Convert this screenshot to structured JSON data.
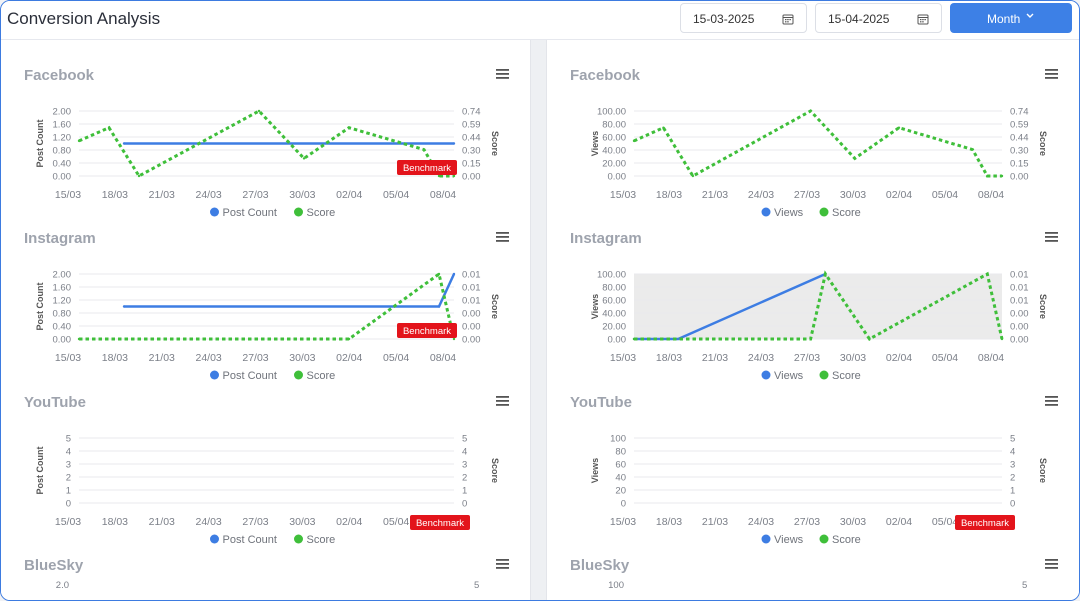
{
  "header": {
    "title": "Conversion Analysis",
    "start_date": "15-03-2025",
    "end_date": "15-04-2025",
    "period_label": "Month"
  },
  "colors": {
    "post_count": "#3d7de3",
    "score": "#3fbf3a",
    "benchmark": "#e3141b",
    "accent": "#3d80e6"
  },
  "columns": [
    {
      "left_metric": "Post Count",
      "platforms": [
        {
          "name": "Facebook",
          "left_ticks": [
            "2.00",
            "1.60",
            "1.20",
            "0.80",
            "0.40",
            "0.00"
          ],
          "right_ticks": [
            "0.74",
            "0.59",
            "0.44",
            "0.30",
            "0.15",
            "0.00"
          ],
          "x_ticks": [
            "15/03",
            "18/03",
            "21/03",
            "24/03",
            "27/03",
            "30/03",
            "02/04",
            "05/04",
            "08/04"
          ],
          "left_label": "Post Count",
          "right_label": "Score",
          "benchmark": "Benchmark",
          "legend": [
            "Post Count",
            "Score"
          ]
        },
        {
          "name": "Instagram",
          "left_ticks": [
            "2.00",
            "1.60",
            "1.20",
            "0.80",
            "0.40",
            "0.00"
          ],
          "right_ticks": [
            "0.01",
            "0.01",
            "0.01",
            "0.00",
            "0.00",
            "0.00"
          ],
          "x_ticks": [
            "15/03",
            "18/03",
            "21/03",
            "24/03",
            "27/03",
            "30/03",
            "02/04",
            "05/04",
            "08/04"
          ],
          "left_label": "Post Count",
          "right_label": "Score",
          "benchmark": "Benchmark",
          "legend": [
            "Post Count",
            "Score"
          ]
        },
        {
          "name": "YouTube",
          "left_ticks": [
            "5",
            "4",
            "3",
            "2",
            "1",
            "0"
          ],
          "right_ticks": [
            "5",
            "4",
            "3",
            "2",
            "1",
            "0"
          ],
          "x_ticks": [
            "15/03",
            "18/03",
            "21/03",
            "24/03",
            "27/03",
            "30/03",
            "02/04",
            "05/04",
            "08/04"
          ],
          "left_label": "Post Count",
          "right_label": "Score",
          "benchmark": "Benchmark",
          "legend": [
            "Post Count",
            "Score"
          ]
        },
        {
          "name": "BlueSky",
          "left_ticks": [
            "2.0"
          ],
          "right_ticks": [
            "5"
          ]
        }
      ]
    },
    {
      "left_metric": "Views",
      "platforms": [
        {
          "name": "Facebook",
          "left_ticks": [
            "100.00",
            "80.00",
            "60.00",
            "40.00",
            "20.00",
            "0.00"
          ],
          "right_ticks": [
            "0.74",
            "0.59",
            "0.44",
            "0.30",
            "0.15",
            "0.00"
          ],
          "x_ticks": [
            "15/03",
            "18/03",
            "21/03",
            "24/03",
            "27/03",
            "30/03",
            "02/04",
            "05/04",
            "08/04"
          ],
          "left_label": "Views",
          "right_label": "Score",
          "legend": [
            "Views",
            "Score"
          ]
        },
        {
          "name": "Instagram",
          "left_ticks": [
            "100.00",
            "80.00",
            "60.00",
            "40.00",
            "20.00",
            "0.00"
          ],
          "right_ticks": [
            "0.01",
            "0.01",
            "0.01",
            "0.00",
            "0.00",
            "0.00"
          ],
          "x_ticks": [
            "15/03",
            "18/03",
            "21/03",
            "24/03",
            "27/03",
            "30/03",
            "02/04",
            "05/04",
            "08/04"
          ],
          "left_label": "Views",
          "right_label": "Score",
          "legend": [
            "Views",
            "Score"
          ]
        },
        {
          "name": "YouTube",
          "left_ticks": [
            "100",
            "80",
            "60",
            "40",
            "20",
            "0"
          ],
          "right_ticks": [
            "5",
            "4",
            "3",
            "2",
            "1",
            "0"
          ],
          "x_ticks": [
            "15/03",
            "18/03",
            "21/03",
            "24/03",
            "27/03",
            "30/03",
            "02/04",
            "05/04",
            "08/04"
          ],
          "left_label": "Views",
          "right_label": "Score",
          "benchmark": "Benchmark",
          "legend": [
            "Views",
            "Score"
          ]
        },
        {
          "name": "BlueSky",
          "left_ticks": [
            "100"
          ],
          "right_ticks": [
            "5"
          ]
        }
      ]
    }
  ],
  "chart_data": [
    {
      "type": "line",
      "title": "Facebook",
      "series": [
        {
          "name": "Post Count",
          "x": [
            "18/03",
            "09/04"
          ],
          "values": [
            1,
            1
          ]
        },
        {
          "name": "Score",
          "x": [
            "15/03",
            "17/03",
            "19/03",
            "27/03",
            "30/03",
            "02/04",
            "07/04",
            "08/04",
            "09/04"
          ],
          "values": [
            0.4,
            0.55,
            0,
            0.74,
            0.2,
            0.55,
            0.3,
            0,
            0
          ]
        }
      ],
      "left_ylim": [
        0,
        2
      ],
      "right_ylim": [
        0,
        0.74
      ],
      "annotations": [
        "Benchmark"
      ]
    },
    {
      "type": "line",
      "title": "Instagram",
      "series": [
        {
          "name": "Post Count",
          "x": [
            "18/03",
            "08/04",
            "09/04"
          ],
          "values": [
            1,
            1,
            2
          ]
        },
        {
          "name": "Score",
          "x": [
            "15/03",
            "02/04",
            "08/04",
            "09/04"
          ],
          "values": [
            0,
            0,
            0.01,
            0
          ]
        }
      ],
      "left_ylim": [
        0,
        2
      ],
      "right_ylim": [
        0,
        0.01
      ],
      "annotations": [
        "Benchmark"
      ]
    },
    {
      "type": "line",
      "title": "YouTube",
      "series": [
        {
          "name": "Post Count",
          "values": []
        },
        {
          "name": "Score",
          "values": []
        }
      ],
      "left_ylim": [
        0,
        5
      ],
      "right_ylim": [
        0,
        5
      ],
      "annotations": [
        "Benchmark"
      ]
    },
    {
      "type": "line",
      "title": "Facebook",
      "series": [
        {
          "name": "Views",
          "values": []
        },
        {
          "name": "Score",
          "x": [
            "15/03",
            "17/03",
            "19/03",
            "27/03",
            "30/03",
            "02/04",
            "07/04",
            "08/04",
            "09/04"
          ],
          "values": [
            0.4,
            0.55,
            0,
            0.74,
            0.2,
            0.55,
            0.3,
            0,
            0
          ]
        }
      ],
      "left_ylim": [
        0,
        100
      ],
      "right_ylim": [
        0,
        0.74
      ]
    },
    {
      "type": "line",
      "title": "Instagram",
      "series": [
        {
          "name": "Views",
          "x": [
            "15/03",
            "18/03",
            "28/03"
          ],
          "values": [
            0,
            0,
            100
          ]
        },
        {
          "name": "Score",
          "x": [
            "15/03",
            "27/03",
            "28/03",
            "31/03",
            "08/04",
            "09/04"
          ],
          "values": [
            0,
            0,
            0.01,
            0,
            0.01,
            0
          ]
        }
      ],
      "left_ylim": [
        0,
        100
      ],
      "right_ylim": [
        0,
        0.01
      ]
    },
    {
      "type": "line",
      "title": "YouTube",
      "series": [
        {
          "name": "Views",
          "values": []
        },
        {
          "name": "Score",
          "values": []
        }
      ],
      "left_ylim": [
        0,
        100
      ],
      "right_ylim": [
        0,
        5
      ],
      "annotations": [
        "Benchmark"
      ]
    }
  ]
}
